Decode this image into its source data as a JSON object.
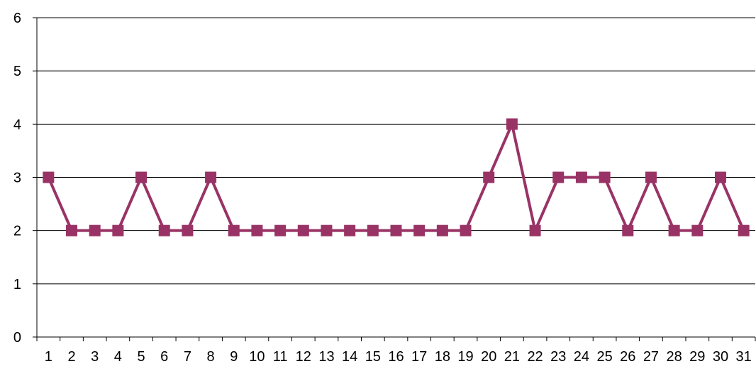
{
  "chart_data": {
    "type": "line",
    "title": "",
    "xlabel": "",
    "ylabel": "",
    "categories": [
      "1",
      "2",
      "3",
      "4",
      "5",
      "6",
      "7",
      "8",
      "9",
      "10",
      "11",
      "12",
      "13",
      "14",
      "15",
      "16",
      "17",
      "18",
      "19",
      "20",
      "21",
      "22",
      "23",
      "24",
      "25",
      "26",
      "27",
      "28",
      "29",
      "30",
      "31"
    ],
    "series": [
      {
        "values": [
          3,
          2,
          2,
          2,
          3,
          2,
          2,
          3,
          2,
          2,
          2,
          2,
          2,
          2,
          2,
          2,
          2,
          2,
          2,
          3,
          4,
          2,
          3,
          3,
          3,
          2,
          3,
          2,
          2,
          3,
          2
        ],
        "color": "#993366",
        "marker": "square"
      }
    ],
    "ylim": [
      0,
      6
    ],
    "yticks": [
      0,
      1,
      2,
      3,
      4,
      5,
      6
    ],
    "grid": "horizontal",
    "legend": "none"
  }
}
